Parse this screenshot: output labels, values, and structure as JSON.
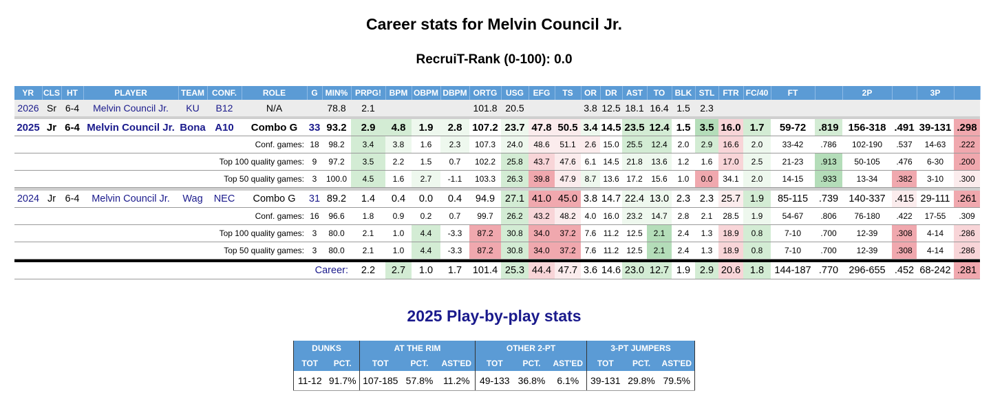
{
  "title": "Career stats for Melvin Council Jr.",
  "recruit_rank": "RecruiT-Rank (0-100): 0.0",
  "colors": {
    "header_bg": "#5b9bd5",
    "g1": "#eef8ee",
    "g2": "#d3ecd4",
    "g3": "#b4ddb9",
    "r1": "#fbeced",
    "r2": "#f8d5d8",
    "r3": "#f0a8ae",
    "nav": "#1a1a8c"
  },
  "headers": [
    "YR",
    "CLS",
    "HT",
    "PLAYER",
    "TEAM",
    "CONF.",
    "ROLE",
    "G",
    "MIN%",
    "PRPG!",
    "BPM",
    "OBPM",
    "DBPM",
    "ORTG",
    "USG",
    "EFG",
    "TS",
    "OR",
    "DR",
    "AST",
    "TO",
    "BLK",
    "STL",
    "FTR",
    "FC/40",
    "FT",
    "",
    "2P",
    "",
    "3P",
    ""
  ],
  "current_row": {
    "yr": "2026",
    "cls": "Sr",
    "ht": "6-4",
    "player": "Melvin Council Jr.",
    "team": "KU",
    "conf": "B12",
    "role": "N/A",
    "g": "",
    "cells": [
      {
        "v": "78.8"
      },
      {
        "v": "2.1"
      },
      {
        "v": ""
      },
      {
        "v": ""
      },
      {
        "v": ""
      },
      {
        "v": "101.8"
      },
      {
        "v": "20.5"
      },
      {
        "v": ""
      },
      {
        "v": ""
      },
      {
        "v": "3.8"
      },
      {
        "v": "12.5"
      },
      {
        "v": "18.1"
      },
      {
        "v": "16.4"
      },
      {
        "v": "1.5"
      },
      {
        "v": "2.3"
      },
      {
        "v": ""
      },
      {
        "v": ""
      },
      {
        "v": ""
      },
      {
        "v": ""
      },
      {
        "v": ""
      },
      {
        "v": ""
      },
      {
        "v": ""
      },
      {
        "v": ""
      }
    ]
  },
  "seasons": [
    {
      "yr": "2025",
      "cls": "Jr",
      "ht": "6-4",
      "player": "Melvin Council Jr.",
      "team": "Bona",
      "conf": "A10",
      "role": "Combo G",
      "g": "33",
      "bold": true,
      "cells": [
        {
          "v": "93.2"
        },
        {
          "v": "2.9",
          "c": "g2"
        },
        {
          "v": "4.8",
          "c": "g2"
        },
        {
          "v": "1.9",
          "c": "g1"
        },
        {
          "v": "2.8",
          "c": "g1"
        },
        {
          "v": "107.2"
        },
        {
          "v": "23.7",
          "c": "g1"
        },
        {
          "v": "47.8",
          "c": "r1"
        },
        {
          "v": "50.5",
          "c": "r1"
        },
        {
          "v": "3.4",
          "c": "g1"
        },
        {
          "v": "14.5"
        },
        {
          "v": "23.5",
          "c": "g2"
        },
        {
          "v": "12.4",
          "c": "g2"
        },
        {
          "v": "1.5"
        },
        {
          "v": "3.5",
          "c": "g3"
        },
        {
          "v": "16.0",
          "c": "r2"
        },
        {
          "v": "1.7",
          "c": "g2"
        },
        {
          "v": "59-72"
        },
        {
          "v": ".819",
          "c": "g2"
        },
        {
          "v": "156-318"
        },
        {
          "v": ".491"
        },
        {
          "v": "39-131"
        },
        {
          "v": ".298",
          "c": "r3"
        }
      ],
      "splits": [
        {
          "label": "Conf. games:",
          "g": "18",
          "cells": [
            {
              "v": "98.2"
            },
            {
              "v": "3.4",
              "c": "g2"
            },
            {
              "v": "3.8",
              "c": "g1"
            },
            {
              "v": "1.6"
            },
            {
              "v": "2.3",
              "c": "g1"
            },
            {
              "v": "107.3"
            },
            {
              "v": "24.0",
              "c": "g1"
            },
            {
              "v": "48.6",
              "c": "r1"
            },
            {
              "v": "51.1",
              "c": "r1"
            },
            {
              "v": "2.6",
              "c": "r1"
            },
            {
              "v": "15.0"
            },
            {
              "v": "25.5",
              "c": "g2"
            },
            {
              "v": "12.4",
              "c": "g2"
            },
            {
              "v": "2.0"
            },
            {
              "v": "2.9",
              "c": "g2"
            },
            {
              "v": "16.6",
              "c": "r2"
            },
            {
              "v": "2.0",
              "c": "g1"
            },
            {
              "v": "33-42"
            },
            {
              "v": ".786"
            },
            {
              "v": "102-190"
            },
            {
              "v": ".537"
            },
            {
              "v": "14-63"
            },
            {
              "v": ".222",
              "c": "r3"
            }
          ]
        },
        {
          "label": "Top 100 quality games:",
          "g": "9",
          "cells": [
            {
              "v": "97.2"
            },
            {
              "v": "3.5",
              "c": "g2"
            },
            {
              "v": "2.2"
            },
            {
              "v": "1.5"
            },
            {
              "v": "0.7"
            },
            {
              "v": "102.2"
            },
            {
              "v": "25.8",
              "c": "g2"
            },
            {
              "v": "43.7",
              "c": "r2"
            },
            {
              "v": "47.6",
              "c": "r1"
            },
            {
              "v": "6.1"
            },
            {
              "v": "14.5"
            },
            {
              "v": "21.8",
              "c": "g1"
            },
            {
              "v": "13.6",
              "c": "g1"
            },
            {
              "v": "1.2"
            },
            {
              "v": "1.6"
            },
            {
              "v": "17.0",
              "c": "r2"
            },
            {
              "v": "2.5",
              "c": "g1"
            },
            {
              "v": "21-23"
            },
            {
              "v": ".913",
              "c": "g3"
            },
            {
              "v": "50-105"
            },
            {
              "v": ".476"
            },
            {
              "v": "6-30"
            },
            {
              "v": ".200",
              "c": "r3"
            }
          ]
        },
        {
          "label": "Top 50 quality games:",
          "g": "3",
          "cells": [
            {
              "v": "100.0"
            },
            {
              "v": "4.5",
              "c": "g2"
            },
            {
              "v": "1.6"
            },
            {
              "v": "2.7",
              "c": "g1"
            },
            {
              "v": "-1.1"
            },
            {
              "v": "103.3"
            },
            {
              "v": "26.3",
              "c": "g2"
            },
            {
              "v": "39.8",
              "c": "r3"
            },
            {
              "v": "47.9",
              "c": "r1"
            },
            {
              "v": "8.7",
              "c": "g1"
            },
            {
              "v": "13.6"
            },
            {
              "v": "17.2"
            },
            {
              "v": "15.6"
            },
            {
              "v": "1.0"
            },
            {
              "v": "0.0",
              "c": "r3"
            },
            {
              "v": "34.1"
            },
            {
              "v": "2.0",
              "c": "g1"
            },
            {
              "v": "14-15"
            },
            {
              "v": ".933",
              "c": "g3"
            },
            {
              "v": "13-34"
            },
            {
              "v": ".382",
              "c": "r3"
            },
            {
              "v": "3-10"
            },
            {
              "v": ".300",
              "c": "r1"
            }
          ]
        }
      ]
    },
    {
      "yr": "2024",
      "cls": "Jr",
      "ht": "6-4",
      "player": "Melvin Council Jr.",
      "team": "Wag",
      "conf": "NEC",
      "role": "Combo G",
      "g": "31",
      "bold": false,
      "cells": [
        {
          "v": "89.2"
        },
        {
          "v": "1.4"
        },
        {
          "v": "0.4"
        },
        {
          "v": "0.0"
        },
        {
          "v": "0.4"
        },
        {
          "v": "94.9"
        },
        {
          "v": "27.1",
          "c": "g2"
        },
        {
          "v": "41.0",
          "c": "r3"
        },
        {
          "v": "45.0",
          "c": "r3"
        },
        {
          "v": "3.8"
        },
        {
          "v": "14.7"
        },
        {
          "v": "22.4",
          "c": "g1"
        },
        {
          "v": "13.0",
          "c": "g1"
        },
        {
          "v": "2.3"
        },
        {
          "v": "2.3"
        },
        {
          "v": "25.7",
          "c": "r1"
        },
        {
          "v": "1.9",
          "c": "g2"
        },
        {
          "v": "85-115"
        },
        {
          "v": ".739"
        },
        {
          "v": "140-337"
        },
        {
          "v": ".415",
          "c": "r1"
        },
        {
          "v": "29-111"
        },
        {
          "v": ".261",
          "c": "r3"
        }
      ],
      "splits": [
        {
          "label": "Conf. games:",
          "g": "16",
          "cells": [
            {
              "v": "96.6"
            },
            {
              "v": "1.8"
            },
            {
              "v": "0.9"
            },
            {
              "v": "0.2"
            },
            {
              "v": "0.7"
            },
            {
              "v": "99.7"
            },
            {
              "v": "26.2",
              "c": "g2"
            },
            {
              "v": "43.2",
              "c": "r2"
            },
            {
              "v": "48.2",
              "c": "r1"
            },
            {
              "v": "4.0"
            },
            {
              "v": "16.0"
            },
            {
              "v": "23.2",
              "c": "g1"
            },
            {
              "v": "14.7",
              "c": "g1"
            },
            {
              "v": "2.8"
            },
            {
              "v": "2.1"
            },
            {
              "v": "28.5"
            },
            {
              "v": "1.9",
              "c": "g1"
            },
            {
              "v": "54-67"
            },
            {
              "v": ".806"
            },
            {
              "v": "76-180"
            },
            {
              "v": ".422"
            },
            {
              "v": "17-55"
            },
            {
              "v": ".309"
            }
          ]
        },
        {
          "label": "Top 100 quality games:",
          "g": "3",
          "cells": [
            {
              "v": "80.0"
            },
            {
              "v": "2.1"
            },
            {
              "v": "1.0"
            },
            {
              "v": "4.4",
              "c": "g2"
            },
            {
              "v": "-3.3"
            },
            {
              "v": "87.2",
              "c": "r3"
            },
            {
              "v": "30.8",
              "c": "g2"
            },
            {
              "v": "34.0",
              "c": "r3"
            },
            {
              "v": "37.2",
              "c": "r3"
            },
            {
              "v": "7.6"
            },
            {
              "v": "11.2"
            },
            {
              "v": "12.5"
            },
            {
              "v": "2.1",
              "c": "g3"
            },
            {
              "v": "2.4"
            },
            {
              "v": "1.3"
            },
            {
              "v": "18.9",
              "c": "r2"
            },
            {
              "v": "0.8",
              "c": "g2"
            },
            {
              "v": "7-10"
            },
            {
              "v": ".700"
            },
            {
              "v": "12-39"
            },
            {
              "v": ".308",
              "c": "r3"
            },
            {
              "v": "4-14"
            },
            {
              "v": ".286",
              "c": "r2"
            }
          ]
        },
        {
          "label": "Top 50 quality games:",
          "g": "3",
          "cells": [
            {
              "v": "80.0"
            },
            {
              "v": "2.1"
            },
            {
              "v": "1.0"
            },
            {
              "v": "4.4",
              "c": "g2"
            },
            {
              "v": "-3.3"
            },
            {
              "v": "87.2",
              "c": "r3"
            },
            {
              "v": "30.8",
              "c": "g2"
            },
            {
              "v": "34.0",
              "c": "r3"
            },
            {
              "v": "37.2",
              "c": "r3"
            },
            {
              "v": "7.6"
            },
            {
              "v": "11.2"
            },
            {
              "v": "12.5"
            },
            {
              "v": "2.1",
              "c": "g3"
            },
            {
              "v": "2.4"
            },
            {
              "v": "1.3"
            },
            {
              "v": "18.9",
              "c": "r2"
            },
            {
              "v": "0.8",
              "c": "g2"
            },
            {
              "v": "7-10"
            },
            {
              "v": ".700"
            },
            {
              "v": "12-39"
            },
            {
              "v": ".308",
              "c": "r3"
            },
            {
              "v": "4-14"
            },
            {
              "v": ".286",
              "c": "r2"
            }
          ]
        }
      ]
    }
  ],
  "career": {
    "label": "Career:",
    "cells": [
      {
        "v": "2.2"
      },
      {
        "v": "2.7",
        "c": "g2"
      },
      {
        "v": "1.0"
      },
      {
        "v": "1.7"
      },
      {
        "v": "101.4"
      },
      {
        "v": "25.3",
        "c": "g2"
      },
      {
        "v": "44.4",
        "c": "r2"
      },
      {
        "v": "47.7",
        "c": "r1"
      },
      {
        "v": "3.6"
      },
      {
        "v": "14.6"
      },
      {
        "v": "23.0",
        "c": "g2"
      },
      {
        "v": "12.7",
        "c": "g2"
      },
      {
        "v": "1.9"
      },
      {
        "v": "2.9",
        "c": "g2"
      },
      {
        "v": "20.6",
        "c": "r2"
      },
      {
        "v": "1.8",
        "c": "g2"
      },
      {
        "v": "144-187"
      },
      {
        "v": ".770"
      },
      {
        "v": "296-655"
      },
      {
        "v": ".452"
      },
      {
        "v": "68-242"
      },
      {
        "v": ".281",
        "c": "r3"
      }
    ]
  },
  "pbp": {
    "title": "2025 Play-by-play stats",
    "groups": [
      {
        "name": "DUNKS",
        "cols": [
          "TOT",
          "PCT."
        ],
        "vals": [
          "11-12",
          "91.7%"
        ]
      },
      {
        "name": "AT THE RIM",
        "cols": [
          "TOT",
          "PCT.",
          "AST'ED"
        ],
        "vals": [
          "107-185",
          "57.8%",
          "11.2%"
        ]
      },
      {
        "name": "OTHER 2-PT",
        "cols": [
          "TOT",
          "PCT.",
          "AST'ED"
        ],
        "vals": [
          "49-133",
          "36.8%",
          "6.1%"
        ]
      },
      {
        "name": "3-PT JUMPERS",
        "cols": [
          "TOT",
          "PCT.",
          "AST'ED"
        ],
        "vals": [
          "39-131",
          "29.8%",
          "79.5%"
        ]
      }
    ]
  }
}
